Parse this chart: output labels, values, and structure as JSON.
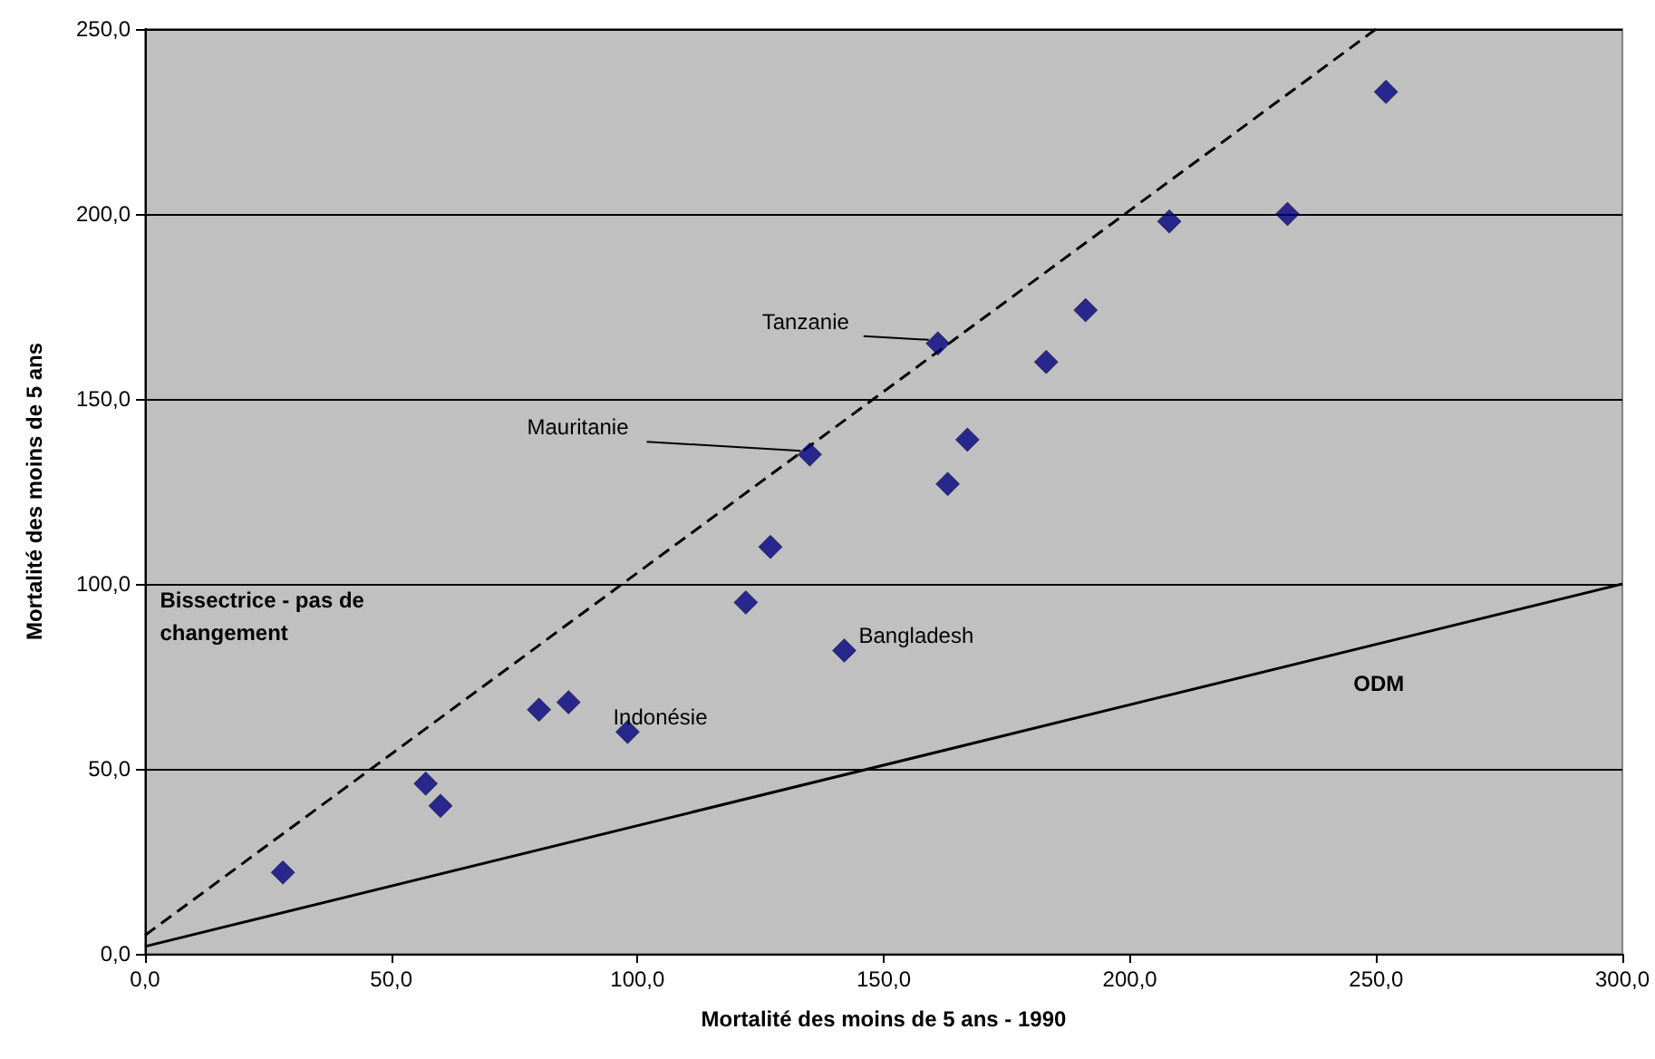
{
  "chart_data": {
    "type": "scatter",
    "xlabel": "Mortalité des moins de 5 ans - 1990",
    "ylabel": "Mortalité des moins de 5 ans",
    "xlim": [
      0,
      300
    ],
    "ylim": [
      0,
      250
    ],
    "xticks": [
      {
        "value": 0,
        "label": "0,0"
      },
      {
        "value": 50,
        "label": "50,0"
      },
      {
        "value": 100,
        "label": "100,0"
      },
      {
        "value": 150,
        "label": "150,0"
      },
      {
        "value": 200,
        "label": "200,0"
      },
      {
        "value": 250,
        "label": "250,0"
      },
      {
        "value": 300,
        "label": "300,0"
      }
    ],
    "yticks": [
      {
        "value": 0,
        "label": "0,0"
      },
      {
        "value": 50,
        "label": "50,0"
      },
      {
        "value": 100,
        "label": "100,0"
      },
      {
        "value": 150,
        "label": "150,0"
      },
      {
        "value": 200,
        "label": "200,0"
      },
      {
        "value": 250,
        "label": "250,0"
      }
    ],
    "grid": "y",
    "series": [
      {
        "type": "line",
        "color": "#000000",
        "line_style": "dashed",
        "marker": "none",
        "x": [
          0,
          250
        ],
        "values": [
          5,
          250
        ]
      },
      {
        "type": "line",
        "color": "#000000",
        "line_style": "solid",
        "marker": "none",
        "x": [
          0,
          300
        ],
        "values": [
          2,
          100
        ]
      },
      {
        "color": "#000080",
        "marker": "diamond",
        "x": [
          28,
          57,
          60,
          80,
          86,
          98,
          122,
          127,
          142,
          135,
          161,
          163,
          167,
          183,
          191,
          208,
          232,
          252
        ],
        "values": [
          22,
          46,
          40,
          66,
          68,
          60,
          95,
          110,
          82,
          135,
          165,
          127,
          139,
          160,
          174,
          198,
          200,
          233
        ]
      }
    ],
    "annotations": [
      {
        "text": "Tanzanie",
        "x": 161,
        "y": 165
      },
      {
        "text": "Mauritanie",
        "x": 135,
        "y": 135
      },
      {
        "text": "Bangladesh",
        "x": 142,
        "y": 82
      },
      {
        "text": "Indonésie",
        "x": 98,
        "y": 60
      },
      "Bissectrice - pas de changement",
      "ODM"
    ]
  }
}
